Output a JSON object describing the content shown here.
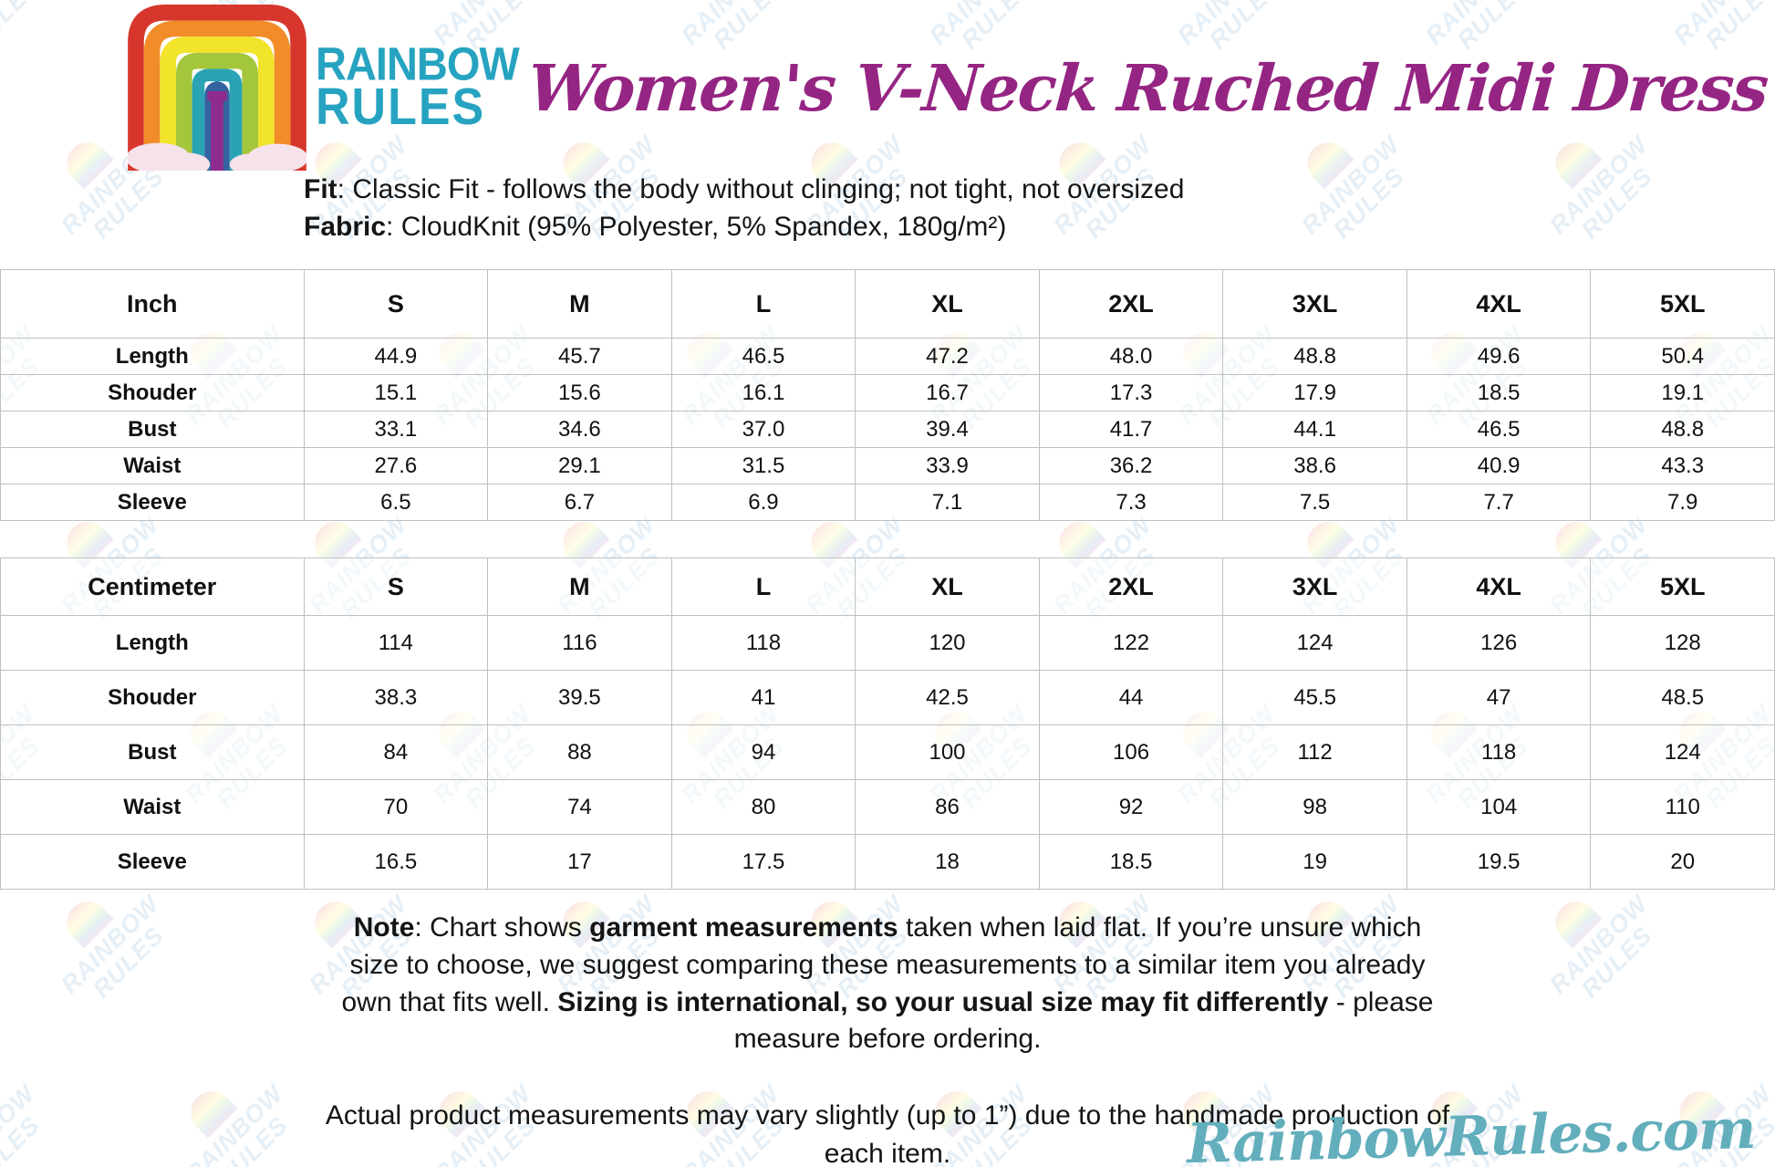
{
  "brand": {
    "name_line1": "RAINBOW",
    "name_line2": "RULES"
  },
  "title": "Women's V-Neck Ruched Midi Dress",
  "info": {
    "fit_label": "Fit",
    "fit_text": ": Classic Fit - follows the body without clinging; not tight, not oversized",
    "fabric_label": "Fabric",
    "fabric_text": ": CloudKnit (95% Polyester, 5% Spandex, 180g/m²)"
  },
  "tables": [
    {
      "unit": "Inch",
      "sizes": [
        "S",
        "M",
        "L",
        "XL",
        "2XL",
        "3XL",
        "4XL",
        "5XL"
      ],
      "rows": [
        {
          "label": "Length",
          "values": [
            "44.9",
            "45.7",
            "46.5",
            "47.2",
            "48.0",
            "48.8",
            "49.6",
            "50.4"
          ]
        },
        {
          "label": "Shouder",
          "values": [
            "15.1",
            "15.6",
            "16.1",
            "16.7",
            "17.3",
            "17.9",
            "18.5",
            "19.1"
          ]
        },
        {
          "label": "Bust",
          "values": [
            "33.1",
            "34.6",
            "37.0",
            "39.4",
            "41.7",
            "44.1",
            "46.5",
            "48.8"
          ]
        },
        {
          "label": "Waist",
          "values": [
            "27.6",
            "29.1",
            "31.5",
            "33.9",
            "36.2",
            "38.6",
            "40.9",
            "43.3"
          ]
        },
        {
          "label": "Sleeve",
          "values": [
            "6.5",
            "6.7",
            "6.9",
            "7.1",
            "7.3",
            "7.5",
            "7.7",
            "7.9"
          ]
        }
      ]
    },
    {
      "unit": "Centimeter",
      "sizes": [
        "S",
        "M",
        "L",
        "XL",
        "2XL",
        "3XL",
        "4XL",
        "5XL"
      ],
      "rows": [
        {
          "label": "Length",
          "values": [
            "114",
            "116",
            "118",
            "120",
            "122",
            "124",
            "126",
            "128"
          ]
        },
        {
          "label": "Shouder",
          "values": [
            "38.3",
            "39.5",
            "41",
            "42.5",
            "44",
            "45.5",
            "47",
            "48.5"
          ]
        },
        {
          "label": "Bust",
          "values": [
            "84",
            "88",
            "94",
            "100",
            "106",
            "112",
            "118",
            "124"
          ]
        },
        {
          "label": "Waist",
          "values": [
            "70",
            "74",
            "80",
            "86",
            "92",
            "98",
            "104",
            "110"
          ]
        },
        {
          "label": "Sleeve",
          "values": [
            "16.5",
            "17",
            "17.5",
            "18",
            "18.5",
            "19",
            "19.5",
            "20"
          ]
        }
      ]
    }
  ],
  "note": {
    "segments": [
      {
        "text": "Note",
        "bold": true
      },
      {
        "text": ": Chart shows ",
        "bold": false
      },
      {
        "text": "garment measurements",
        "bold": true
      },
      {
        "text": " taken when laid flat. If you’re unsure which size to choose, we suggest comparing these measurements to a similar item you already own that fits well. ",
        "bold": false
      },
      {
        "text": "Sizing is international, so your usual size may fit differently",
        "bold": true
      },
      {
        "text": " - please measure before ordering.",
        "bold": false
      }
    ]
  },
  "disclaimer": "Actual product measurements may vary slightly (up to 1”) due to the handmade production of each item.",
  "footer_brand": "RainbowRules.com",
  "watermark": {
    "text": "RAINBOW RULES"
  },
  "colors": {
    "brand_teal": "#26a3c0",
    "title_purple": "#952583",
    "footer_teal": "#62aebc",
    "table_border": "#c0c0c0"
  }
}
